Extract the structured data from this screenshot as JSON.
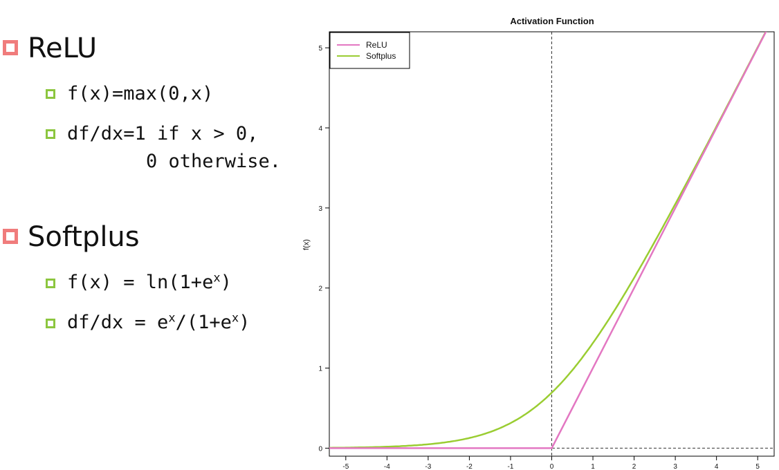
{
  "left_panel": {
    "relu": {
      "title": "ReLU",
      "formula": "f(x)=max(0,x)",
      "derivative_line1": "df/dx=1 if x > 0,",
      "derivative_line2": "0 otherwise."
    },
    "softplus": {
      "title": "Softplus",
      "formula_prefix": "f(x) = ln(1+e",
      "formula_sup": "x",
      "formula_suffix": ")",
      "derivative_prefix": "df/dx = e",
      "derivative_sup1": "x",
      "derivative_mid": "/(1+e",
      "derivative_sup2": "x",
      "derivative_suffix": ")"
    },
    "colors": {
      "main_bullet": "#f07c7c",
      "sub_bullet": "#8cc63f"
    }
  },
  "chart_data": {
    "type": "line",
    "title": "Activation Function",
    "xlabel": "",
    "ylabel": "f(x)",
    "xlim": [
      -5.4,
      5.4
    ],
    "ylim": [
      -0.1,
      5.2
    ],
    "x_ticks": [
      -5,
      -4,
      -3,
      -2,
      -1,
      0,
      1,
      2,
      3,
      4,
      5
    ],
    "y_ticks": [
      0,
      1,
      2,
      3,
      4,
      5
    ],
    "grid": false,
    "reference_lines": {
      "vertical_x": 0,
      "horizontal_y": 0,
      "style": "dashed"
    },
    "legend": {
      "placement": "top-left",
      "entries": [
        "ReLU",
        "Softplus"
      ]
    },
    "x": [
      -5.4,
      -5,
      -4.5,
      -4,
      -3.5,
      -3,
      -2.5,
      -2,
      -1.5,
      -1,
      -0.5,
      0,
      0.5,
      1,
      1.5,
      2,
      2.5,
      3,
      3.5,
      4,
      4.5,
      5,
      5.4
    ],
    "series": [
      {
        "name": "ReLU",
        "color": "#e377c2",
        "values": [
          0,
          0,
          0,
          0,
          0,
          0,
          0,
          0,
          0,
          0,
          0,
          0,
          0.5,
          1,
          1.5,
          2,
          2.5,
          3,
          3.5,
          4,
          4.5,
          5,
          5.4
        ]
      },
      {
        "name": "Softplus",
        "color": "#9acd32",
        "values": [
          0.0045,
          0.0067,
          0.011,
          0.0181,
          0.0297,
          0.0486,
          0.0789,
          0.1269,
          0.2014,
          0.3133,
          0.4741,
          0.6931,
          0.9741,
          1.3133,
          1.7014,
          2.1269,
          2.5789,
          3.0486,
          3.5297,
          4.0181,
          4.511,
          5.0067,
          5.4045
        ]
      }
    ]
  }
}
